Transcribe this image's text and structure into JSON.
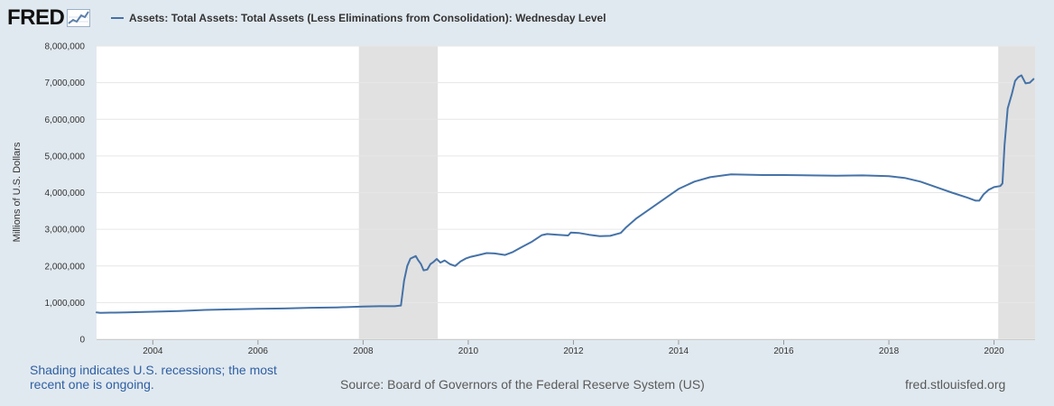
{
  "header": {
    "logo_text": "FRED",
    "logo_icon": "line-graph-icon"
  },
  "colors": {
    "background": "#e1e9f0",
    "plot_background": "#ffffff",
    "series_line": "#4572a7",
    "recession_shading": "#e1e1e1",
    "gridline": "#e6e6e6",
    "note_text": "#2e5fa3",
    "footer_text": "#5a5a5a"
  },
  "footer": {
    "note_line1": "Shading indicates U.S. recessions; the most",
    "note_line2": "recent one is ongoing.",
    "source": "Source: Board of Governors of the Federal Reserve System (US)",
    "site": "fred.stlouisfed.org"
  },
  "chart_data": {
    "type": "line",
    "title": "",
    "xlabel": "",
    "ylabel": "Millions of U.S. Dollars",
    "xlim": [
      2002.93,
      2020.78
    ],
    "ylim": [
      0,
      8000000
    ],
    "grid": true,
    "legend_position": "top",
    "x_ticks": [
      {
        "value": 2004,
        "label": "2004"
      },
      {
        "value": 2006,
        "label": "2006"
      },
      {
        "value": 2008,
        "label": "2008"
      },
      {
        "value": 2010,
        "label": "2010"
      },
      {
        "value": 2012,
        "label": "2012"
      },
      {
        "value": 2014,
        "label": "2014"
      },
      {
        "value": 2016,
        "label": "2016"
      },
      {
        "value": 2018,
        "label": "2018"
      },
      {
        "value": 2020,
        "label": "2020"
      }
    ],
    "y_ticks": [
      {
        "value": 0,
        "label": "0"
      },
      {
        "value": 1000000,
        "label": "1,000,000"
      },
      {
        "value": 2000000,
        "label": "2,000,000"
      },
      {
        "value": 3000000,
        "label": "3,000,000"
      },
      {
        "value": 4000000,
        "label": "4,000,000"
      },
      {
        "value": 5000000,
        "label": "5,000,000"
      },
      {
        "value": 6000000,
        "label": "6,000,000"
      },
      {
        "value": 7000000,
        "label": "7,000,000"
      },
      {
        "value": 8000000,
        "label": "8,000,000"
      }
    ],
    "recessions": [
      {
        "start": 2007.92,
        "end": 2009.42
      },
      {
        "start": 2020.08,
        "end": 2020.78
      }
    ],
    "series": [
      {
        "name": "Assets: Total Assets: Total Assets (Less Eliminations from Consolidation): Wednesday Level",
        "x": [
          2002.93,
          2003.0,
          2003.2,
          2003.5,
          2004.0,
          2004.5,
          2005.0,
          2005.5,
          2006.0,
          2006.5,
          2007.0,
          2007.5,
          2008.0,
          2008.3,
          2008.6,
          2008.72,
          2008.78,
          2008.84,
          2008.9,
          2009.0,
          2009.05,
          2009.1,
          2009.15,
          2009.22,
          2009.28,
          2009.33,
          2009.4,
          2009.47,
          2009.55,
          2009.65,
          2009.75,
          2009.85,
          2009.95,
          2010.05,
          2010.2,
          2010.35,
          2010.5,
          2010.7,
          2010.85,
          2011.0,
          2011.2,
          2011.4,
          2011.5,
          2011.7,
          2011.9,
          2011.95,
          2012.1,
          2012.3,
          2012.5,
          2012.7,
          2012.9,
          2013.0,
          2013.2,
          2013.5,
          2013.8,
          2014.0,
          2014.3,
          2014.6,
          2014.9,
          2015.0,
          2015.3,
          2015.6,
          2016.0,
          2016.5,
          2017.0,
          2017.5,
          2018.0,
          2018.3,
          2018.6,
          2018.9,
          2019.2,
          2019.5,
          2019.65,
          2019.72,
          2019.8,
          2019.9,
          2020.0,
          2020.12,
          2020.16,
          2020.2,
          2020.26,
          2020.34,
          2020.4,
          2020.46,
          2020.52,
          2020.6,
          2020.68,
          2020.75
        ],
        "y": [
          730000,
          720000,
          725000,
          730000,
          750000,
          770000,
          800000,
          815000,
          830000,
          840000,
          860000,
          870000,
          890000,
          900000,
          900000,
          920000,
          1600000,
          2000000,
          2200000,
          2270000,
          2150000,
          2050000,
          1880000,
          1900000,
          2050000,
          2100000,
          2190000,
          2090000,
          2150000,
          2050000,
          2000000,
          2120000,
          2200000,
          2250000,
          2300000,
          2350000,
          2340000,
          2300000,
          2380000,
          2500000,
          2650000,
          2840000,
          2870000,
          2850000,
          2830000,
          2910000,
          2900000,
          2850000,
          2810000,
          2820000,
          2900000,
          3050000,
          3300000,
          3600000,
          3900000,
          4100000,
          4300000,
          4420000,
          4480000,
          4500000,
          4490000,
          4480000,
          4480000,
          4470000,
          4460000,
          4470000,
          4450000,
          4400000,
          4300000,
          4150000,
          4000000,
          3860000,
          3780000,
          3780000,
          3950000,
          4080000,
          4150000,
          4180000,
          4250000,
          5300000,
          6300000,
          6700000,
          7050000,
          7150000,
          7200000,
          6980000,
          7000000,
          7100000
        ]
      }
    ]
  }
}
